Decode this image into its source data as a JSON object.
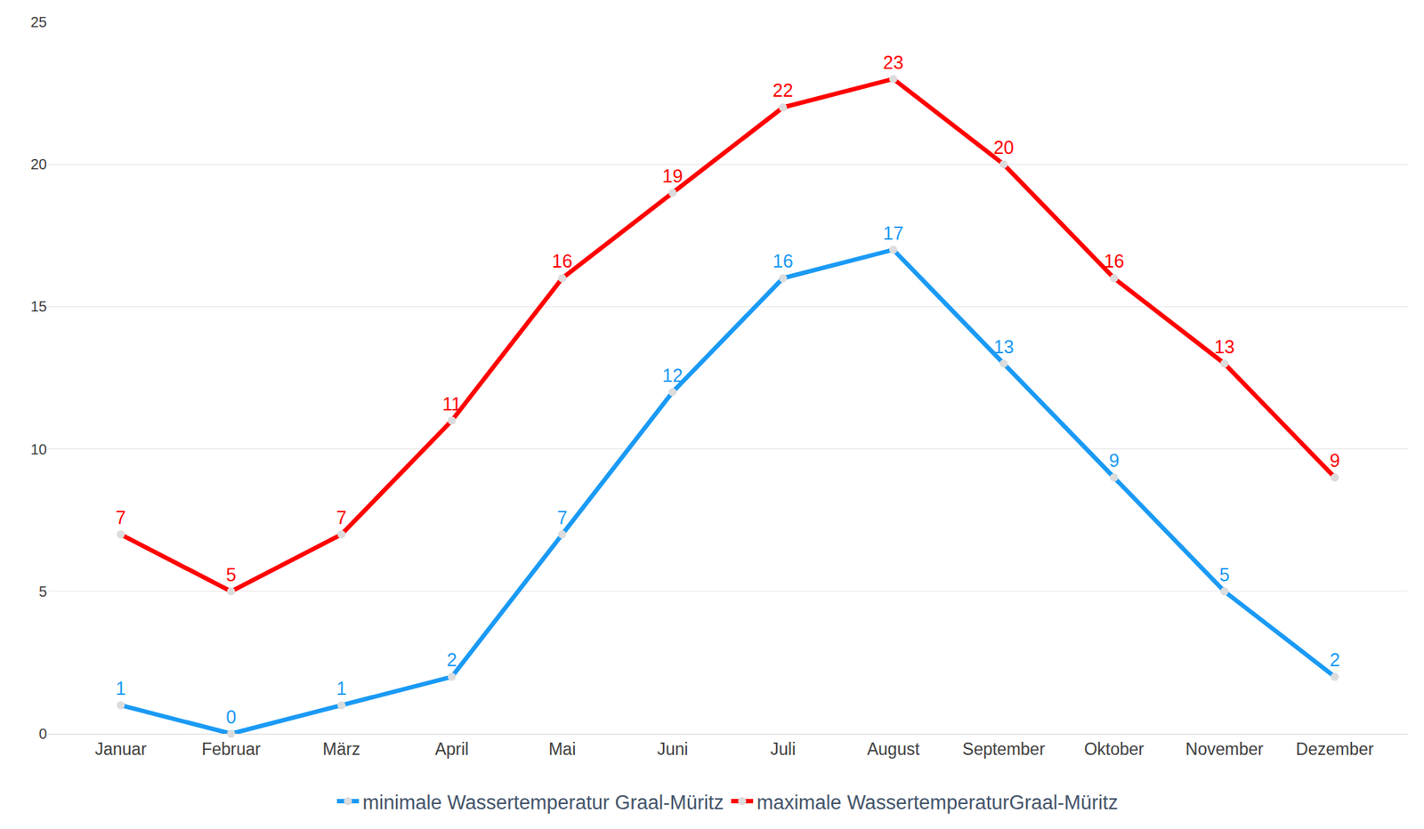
{
  "chart_data": {
    "type": "line",
    "categories": [
      "Januar",
      "Februar",
      "März",
      "April",
      "Mai",
      "Juni",
      "Juli",
      "August",
      "September",
      "Oktober",
      "November",
      "Dezember"
    ],
    "series": [
      {
        "name": "minimale Wassertemperatur Graal-Müritz",
        "color": "#1a9af5",
        "values": [
          1,
          0,
          1,
          2,
          7,
          12,
          16,
          17,
          13,
          9,
          5,
          2
        ]
      },
      {
        "name": "maximale WassertemperaturGraal-Müritz",
        "color": "#ff0000",
        "values": [
          7,
          5,
          7,
          11,
          16,
          19,
          22,
          23,
          20,
          16,
          13,
          9
        ]
      }
    ],
    "ylim": [
      0,
      25
    ],
    "yticks": [
      0,
      5,
      10,
      15,
      20,
      25
    ],
    "grid": true,
    "legend": "bottom",
    "data_labels": true,
    "marker": "circle",
    "line_style": "solid"
  }
}
